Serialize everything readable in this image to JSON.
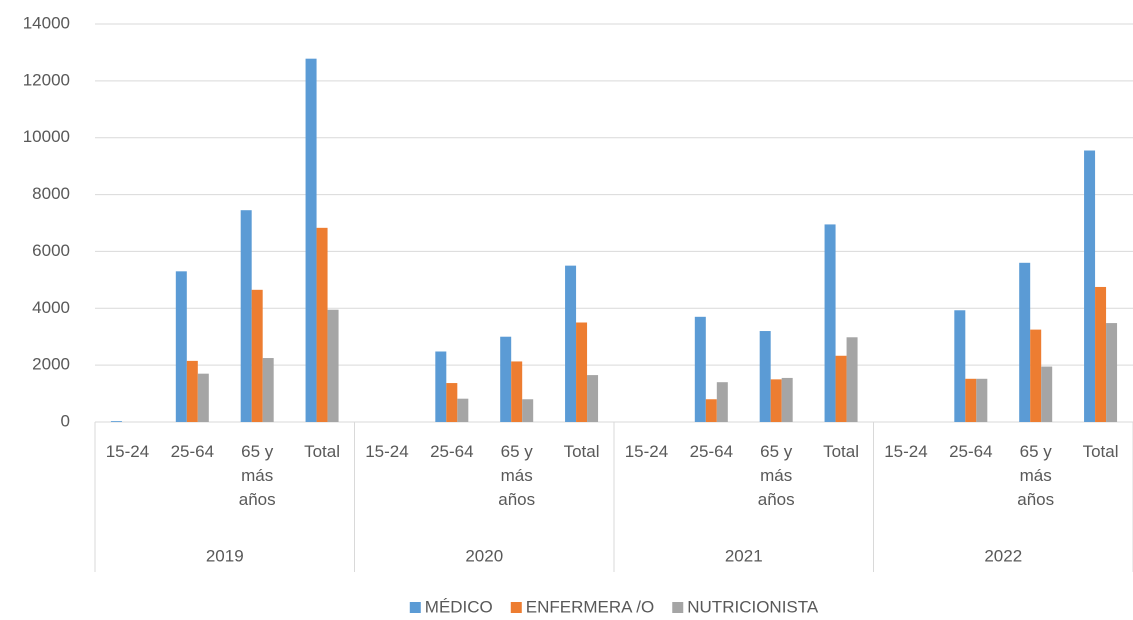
{
  "chart_data": {
    "type": "bar",
    "groups": [
      "2019",
      "2020",
      "2021",
      "2022"
    ],
    "categories": [
      "15-24",
      "25-64",
      "65 y más años",
      "Total",
      "15-24",
      "25-64",
      "65 y más años",
      "Total",
      "15-24",
      "25-64",
      "65 y más años",
      "Total",
      "15-24",
      "25-64",
      "65 y más años",
      "Total"
    ],
    "series": [
      {
        "name": "MÉDICO",
        "color": "#5b9bd5",
        "values": [
          30,
          5300,
          7450,
          12780,
          0,
          2480,
          3000,
          5500,
          0,
          3700,
          3200,
          6950,
          0,
          3930,
          5600,
          9550
        ]
      },
      {
        "name": "ENFERMERA /O",
        "color": "#ed7d31",
        "values": [
          0,
          2150,
          4650,
          6830,
          0,
          1370,
          2130,
          3500,
          0,
          800,
          1500,
          2330,
          0,
          1520,
          3250,
          4750
        ]
      },
      {
        "name": "NUTRICIONISTA",
        "color": "#a5a5a5",
        "values": [
          0,
          1700,
          2250,
          3950,
          0,
          820,
          800,
          1650,
          0,
          1400,
          1550,
          2980,
          0,
          1520,
          1950,
          3480
        ]
      }
    ],
    "ylim": [
      0,
      14000
    ],
    "yticks": [
      0,
      2000,
      4000,
      6000,
      8000,
      10000,
      12000,
      14000
    ],
    "grid": true,
    "legend": "bottom"
  }
}
